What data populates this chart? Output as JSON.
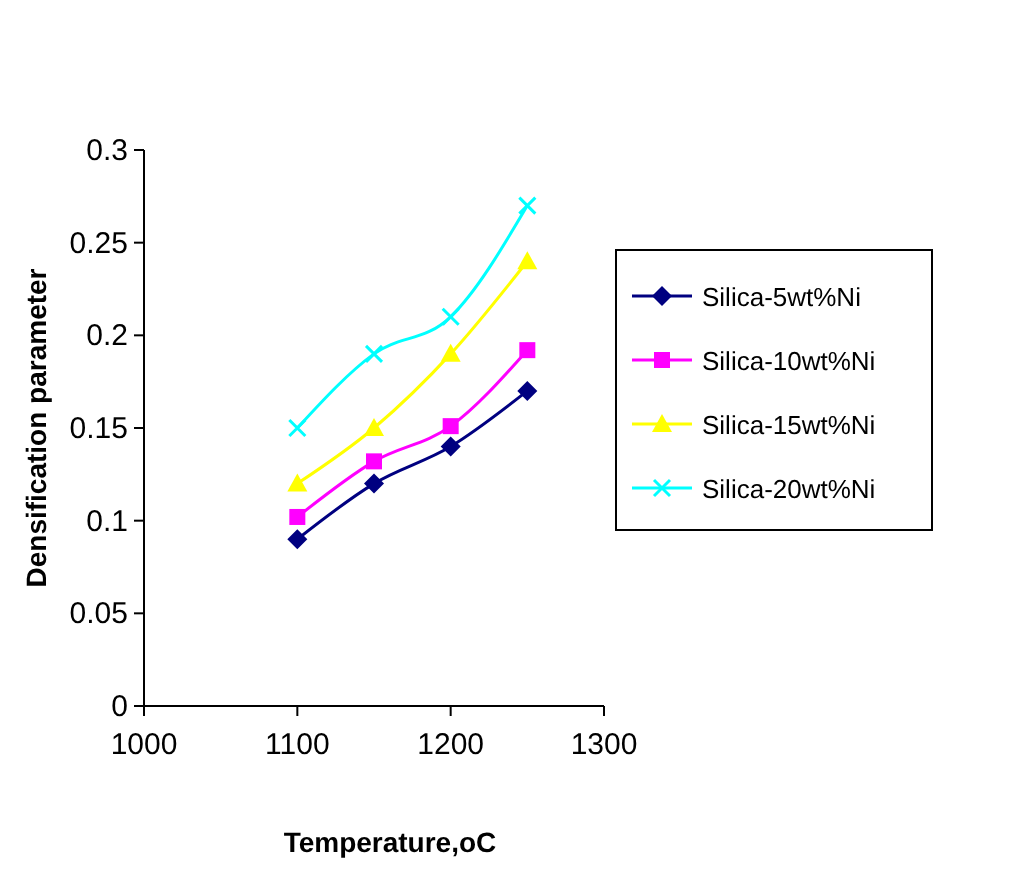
{
  "chart_data": {
    "type": "line",
    "xlabel": "Temperature,oC",
    "ylabel": "Densification parameter",
    "x": [
      1100,
      1150,
      1200,
      1250
    ],
    "xlim": [
      1000,
      1300
    ],
    "xticks": [
      1000,
      1100,
      1200,
      1300
    ],
    "ylim": [
      0,
      0.3
    ],
    "yticks": [
      0,
      0.05,
      0.1,
      0.15,
      0.2,
      0.25,
      0.3
    ],
    "grid": false,
    "legend": "right",
    "series": [
      {
        "name": "Silica-5wt%Ni",
        "color": "#000080",
        "marker": "diamond",
        "values": [
          0.09,
          0.12,
          0.14,
          0.17
        ]
      },
      {
        "name": "Silica-10wt%Ni",
        "color": "#ff00ff",
        "marker": "square",
        "values": [
          0.102,
          0.132,
          0.151,
          0.192
        ]
      },
      {
        "name": "Silica-15wt%Ni",
        "color": "#ffff00",
        "marker": "triangle",
        "values": [
          0.12,
          0.15,
          0.19,
          0.24
        ]
      },
      {
        "name": "Silica-20wt%Ni",
        "color": "#00ffff",
        "marker": "cross",
        "values": [
          0.15,
          0.19,
          0.21,
          0.27
        ]
      }
    ]
  }
}
